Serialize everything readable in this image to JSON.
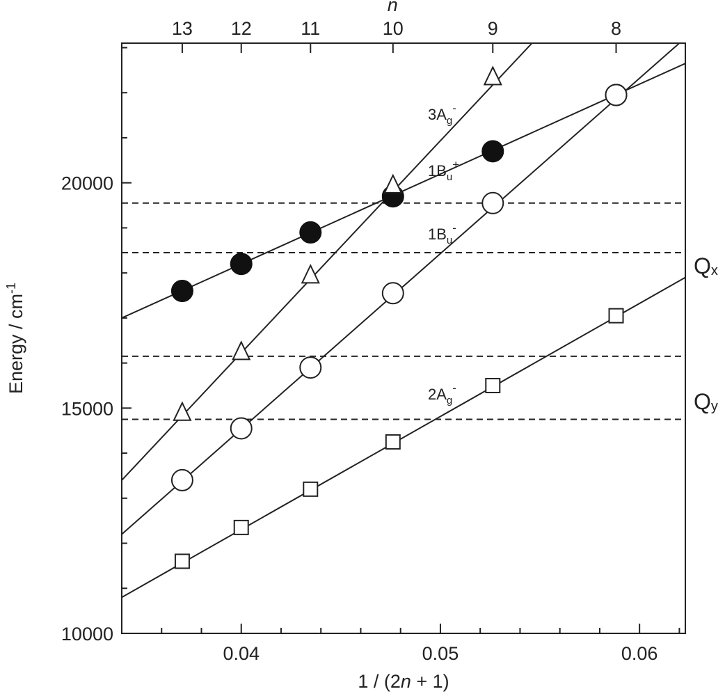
{
  "chart_data": {
    "type": "line",
    "xlabel": "1 / (2n + 1)",
    "ylabel": "Energy / cm-1",
    "top_axis_label": "n",
    "xlim": [
      0.034,
      0.0623
    ],
    "ylim": [
      10000,
      23100
    ],
    "x_ticks": [
      0.04,
      0.05,
      0.06
    ],
    "x_tick_labels": [
      "0.04",
      "0.05",
      "0.06"
    ],
    "y_ticks": [
      10000,
      15000,
      20000
    ],
    "y_tick_labels": [
      "10000",
      "15000",
      "20000"
    ],
    "top_ticks": [
      13,
      12,
      11,
      10,
      9,
      8
    ],
    "top_tick_labels": [
      "13",
      "12",
      "11",
      "10",
      "9",
      "8"
    ],
    "grid": false,
    "series": [
      {
        "name": "1Bu+",
        "marker": "filled-circle",
        "x": [
          0.037037,
          0.04,
          0.043478,
          0.047619,
          0.052632,
          0.058824
        ],
        "y": [
          17600,
          18200,
          18900,
          19700,
          20700,
          21950
        ]
      },
      {
        "name": "3Ag-",
        "marker": "open-triangle",
        "x": [
          0.037037,
          0.04,
          0.043478,
          0.047619,
          0.052632
        ],
        "y": [
          14900,
          16250,
          17950,
          19950,
          22350
        ]
      },
      {
        "name": "1Bu-",
        "marker": "open-circle",
        "x": [
          0.037037,
          0.04,
          0.043478,
          0.047619,
          0.052632,
          0.058824
        ],
        "y": [
          13400,
          14550,
          15900,
          17550,
          19550,
          21950
        ]
      },
      {
        "name": "2Ag-",
        "marker": "open-square",
        "x": [
          0.037037,
          0.04,
          0.043478,
          0.047619,
          0.052632,
          0.058824
        ],
        "y": [
          11600,
          12350,
          13200,
          14250,
          15500,
          17050
        ]
      }
    ],
    "fit_lines": [
      {
        "series": "1Bu+",
        "from": [
          0.034,
          17000
        ],
        "to": [
          0.0623,
          22650
        ]
      },
      {
        "series": "3Ag-",
        "from": [
          0.034,
          13400
        ],
        "to": [
          0.0546,
          23100
        ]
      },
      {
        "series": "1Bu-",
        "from": [
          0.034,
          12200
        ],
        "to": [
          0.062,
          23100
        ]
      },
      {
        "series": "2Ag-",
        "from": [
          0.034,
          10800
        ],
        "to": [
          0.0623,
          17900
        ]
      }
    ],
    "reference_lines": [
      19550,
      18450,
      16150,
      14750
    ],
    "bands": [
      {
        "label": "Q",
        "subscript": "x"
      },
      {
        "label": "Q",
        "subscript": "y"
      }
    ],
    "series_labels": [
      {
        "main": "3A",
        "sub": "g",
        "sup": "-"
      },
      {
        "main": "1B",
        "sub": "u",
        "sup": "+"
      },
      {
        "main": "1B",
        "sub": "u",
        "sup": "-"
      },
      {
        "main": "2A",
        "sub": "g",
        "sup": "-"
      }
    ]
  }
}
